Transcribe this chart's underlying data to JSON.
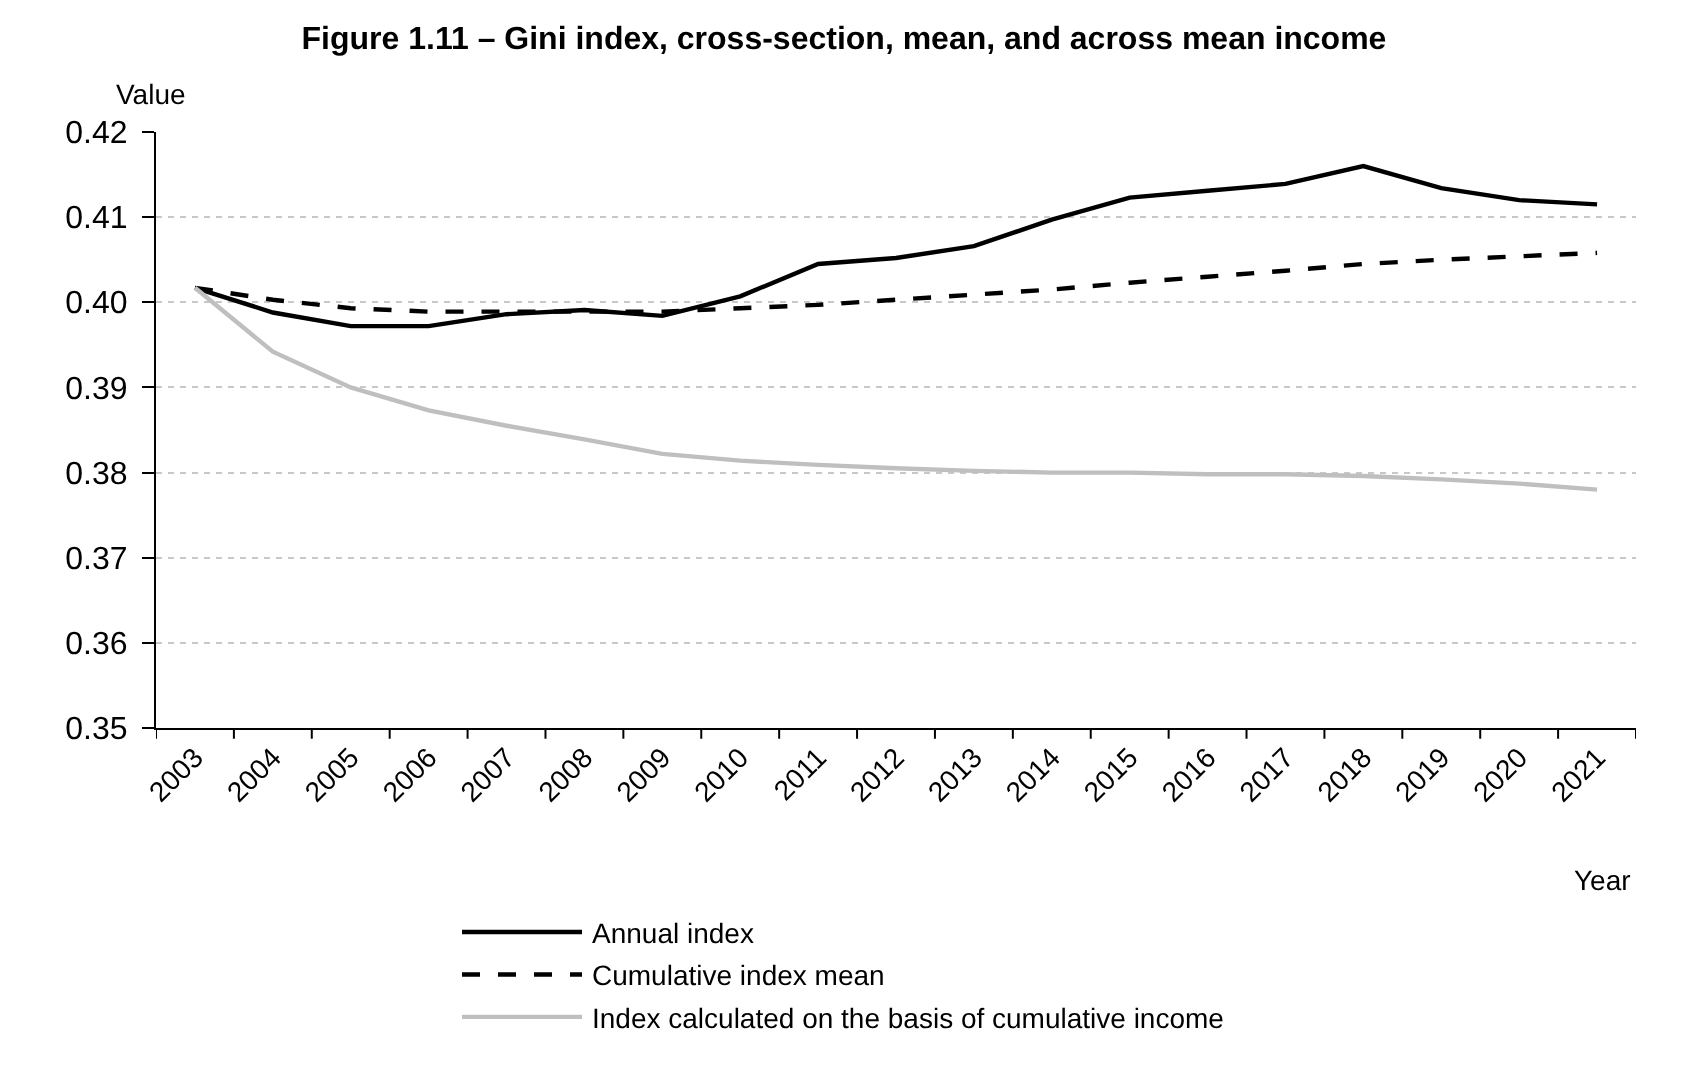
{
  "chart_data": {
    "type": "line",
    "title": "Figure 1.11 – Gini index, cross-section, mean, and across mean income",
    "xlabel": "Year",
    "ylabel": "Value",
    "categories": [
      "2003",
      "2004",
      "2005",
      "2006",
      "2007",
      "2008",
      "2009",
      "2010",
      "2011",
      "2012",
      "2013",
      "2014",
      "2015",
      "2016",
      "2017",
      "2018",
      "2019",
      "2020",
      "2021"
    ],
    "series": [
      {
        "name": "Annual index",
        "color": "#000000",
        "line_style": "solid",
        "values": [
          0.4017,
          0.3988,
          0.3972,
          0.3972,
          0.3986,
          0.3991,
          0.3984,
          0.4007,
          0.4045,
          0.4052,
          0.4066,
          0.4097,
          0.4123,
          0.4131,
          0.4139,
          0.416,
          0.4134,
          0.412,
          0.4115
        ]
      },
      {
        "name": "Cumulative index mean",
        "color": "#000000",
        "line_style": "dashed",
        "values": [
          0.4017,
          0.4003,
          0.3993,
          0.3989,
          0.3989,
          0.3989,
          0.3989,
          0.3993,
          0.3997,
          0.4003,
          0.4009,
          0.4015,
          0.4023,
          0.403,
          0.4037,
          0.4045,
          0.405,
          0.4054,
          0.4058
        ]
      },
      {
        "name": "Index calculated on the basis of cumulative income",
        "color": "#bfbfbf",
        "line_style": "solid",
        "values": [
          0.4017,
          0.3942,
          0.39,
          0.3873,
          0.3855,
          0.3839,
          0.3822,
          0.3814,
          0.3809,
          0.3805,
          0.3802,
          0.38,
          0.38,
          0.3798,
          0.3798,
          0.3796,
          0.3792,
          0.3787,
          0.378
        ]
      }
    ],
    "ylim": [
      0.35,
      0.42
    ],
    "yticks": [
      {
        "value": 0.35,
        "label": "0.35"
      },
      {
        "value": 0.36,
        "label": "0.36"
      },
      {
        "value": 0.37,
        "label": "0.37"
      },
      {
        "value": 0.38,
        "label": "0.38"
      },
      {
        "value": 0.39,
        "label": "0.39"
      },
      {
        "value": 0.4,
        "label": "0.40"
      },
      {
        "value": 0.41,
        "label": "0.41"
      },
      {
        "value": 0.42,
        "label": "0.42"
      }
    ],
    "grid": "y",
    "legend": "bottom",
    "marker": "none"
  }
}
